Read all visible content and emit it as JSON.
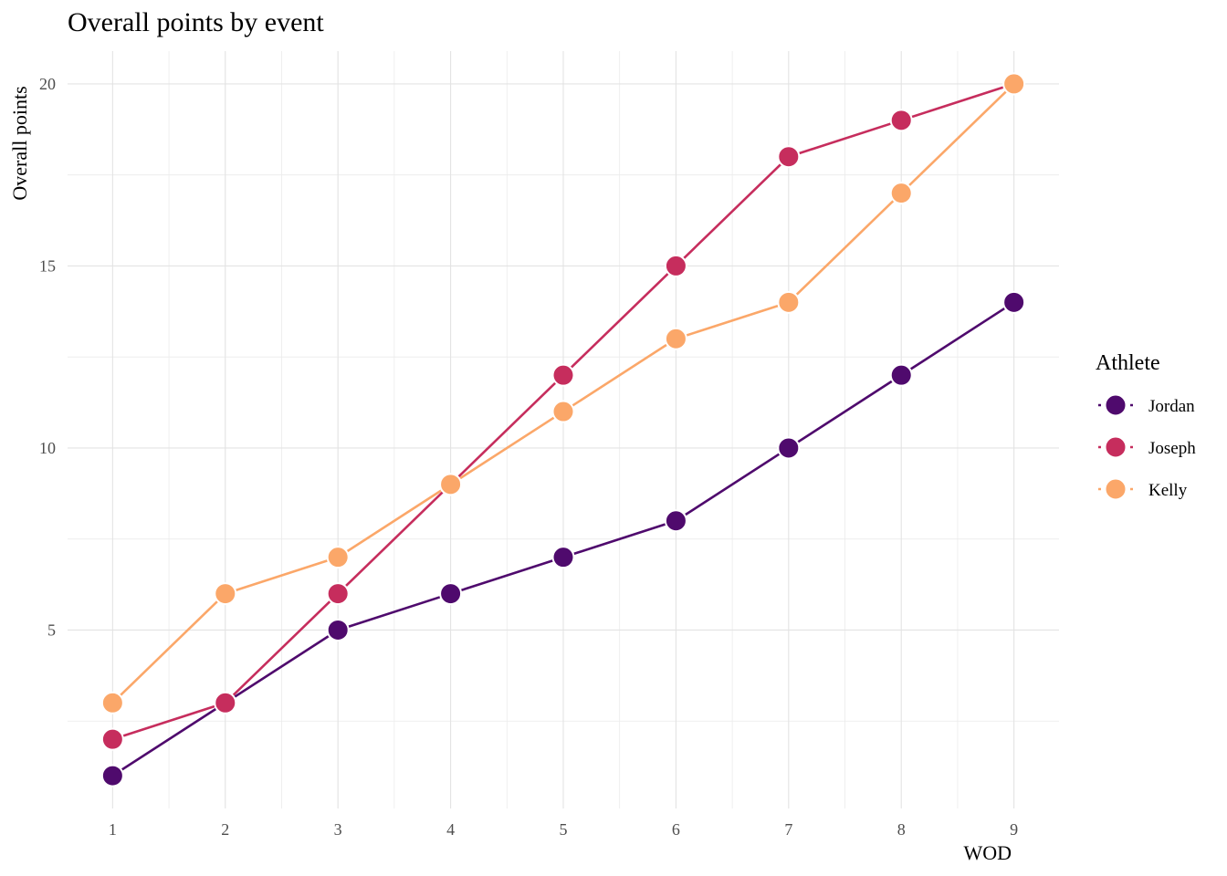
{
  "chart_data": {
    "type": "line",
    "title": "Overall points by event",
    "xlabel": "WOD",
    "ylabel": "Overall points",
    "x": [
      1,
      2,
      3,
      4,
      5,
      6,
      7,
      8,
      9
    ],
    "xlim": [
      0.6,
      9.4
    ],
    "ylim": [
      0.1,
      20.9
    ],
    "y_ticks": [
      5,
      10,
      15,
      20
    ],
    "x_ticks": [
      1,
      2,
      3,
      4,
      5,
      6,
      7,
      8,
      9
    ],
    "grid": true,
    "legend": {
      "title": "Athlete",
      "position": "right"
    },
    "series": [
      {
        "name": "Jordan",
        "color": "#4f0a6d",
        "values": [
          1,
          3,
          5,
          6,
          7,
          8,
          10,
          12,
          14
        ]
      },
      {
        "name": "Joseph",
        "color": "#c62d5d",
        "values": [
          2,
          3,
          6,
          9,
          12,
          15,
          18,
          19,
          20
        ]
      },
      {
        "name": "Kelly",
        "color": "#fba769",
        "values": [
          3,
          6,
          7,
          9,
          11,
          13,
          14,
          17,
          20
        ]
      }
    ]
  }
}
